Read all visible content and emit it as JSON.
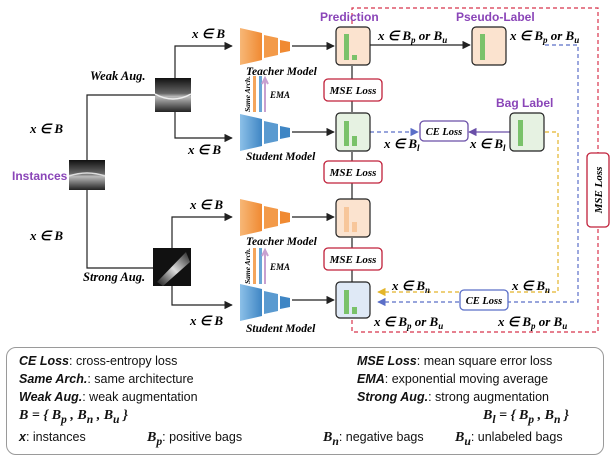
{
  "labels": {
    "instances": "Instances",
    "weak_aug": "Weak Aug.",
    "strong_aug": "Strong Aug.",
    "teacher_model": "Teacher Model",
    "student_model": "Student Model",
    "same_arch": "Same Arch.",
    "ema": "EMA",
    "prediction": "Prediction",
    "pseudo_label": "Pseudo-Label",
    "bag_label": "Bag Label",
    "mse_loss": "MSE Loss",
    "ce_loss": "CE Loss"
  },
  "math": {
    "x_in_B": "x ∈ B",
    "x_in_Bp_or_Bu": "x ∈ Bp or Bu",
    "x_in_Bl": "x ∈ Bl",
    "x_in_Bn": "x ∈ Bn"
  },
  "legend": {
    "ce_term": "CE Loss",
    "ce_desc": ": cross-entropy loss",
    "mse_term": "MSE Loss",
    "mse_desc": ": mean square error loss",
    "arch_term": "Same Arch.",
    "arch_desc": ": same architecture",
    "ema_term": "EMA",
    "ema_desc": ": exponential moving average",
    "weak_term": "Weak Aug.",
    "weak_desc": ": weak augmentation",
    "strong_term": "Strong Aug.",
    "strong_desc": ": strong augmentation",
    "B_def": "B = { Bp , Bn , Bu }",
    "Bl_def": "Bl = { Bp , Bn }",
    "x_term": "x",
    "x_desc": ": instances",
    "Bp_term": "Bp",
    "Bp_desc": ": positive bags",
    "Bn_term": "Bn",
    "Bn_desc": ": negative bags",
    "Bu_term": "Bu",
    "Bu_desc": ": unlabeled bags"
  },
  "colors": {
    "teacher": "#f4a55c",
    "student": "#6aa6d6",
    "bar_green": "#7ac26a",
    "pred_fill": "#fbe3cf",
    "student_fill": "#e6f2e2",
    "ce_border": "#6a4fa8",
    "mse_border": "#c0203a",
    "purple_text": "#8a45b8",
    "dashed_red": "#d8344c",
    "dashed_blue": "#5b6fc8",
    "dashed_yellow": "#e3b52b"
  }
}
